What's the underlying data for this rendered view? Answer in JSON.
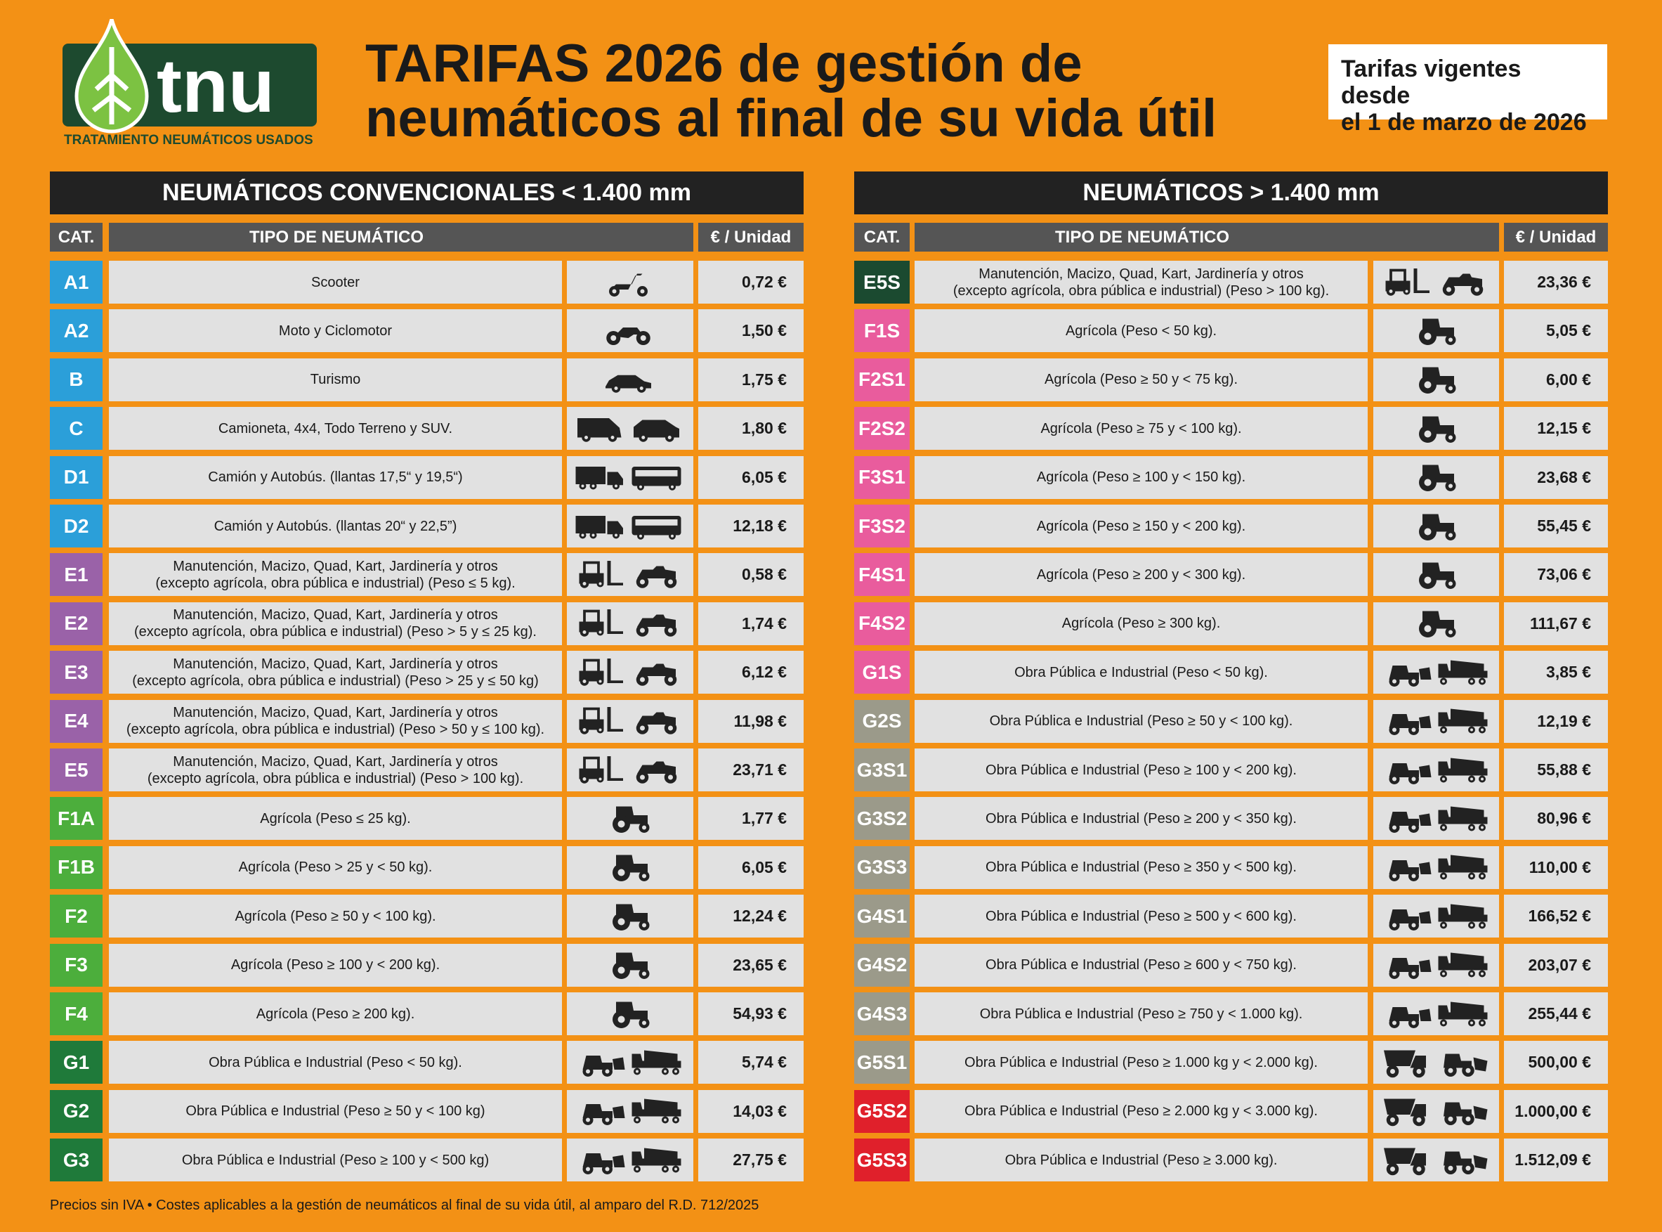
{
  "header": {
    "logo_text": "tnu",
    "logo_subtitle": "TRATAMIENTO NEUMÁTICOS USADOS",
    "title": [
      "TARIFAS 2026 de gestión de",
      "neumáticos al final de su vida útil"
    ],
    "validity": [
      "Tarifas vigentes desde",
      "el 1 de marzo de 2026"
    ]
  },
  "tables": [
    {
      "title": "NEUMÁTICOS CONVENCIONALES < 1.400 mm",
      "headers": [
        "CAT.",
        "TIPO DE NEUMÁTICO",
        "€ / Unidad"
      ],
      "rows": [
        {
          "cat": "A1",
          "color": "#2b9fd9",
          "type": [
            "Scooter"
          ],
          "price": "0,72 €"
        },
        {
          "cat": "A2",
          "color": "#2b9fd9",
          "type": [
            "Moto y Ciclomotor"
          ],
          "price": "1,50 €"
        },
        {
          "cat": "B",
          "color": "#2b9fd9",
          "type": [
            "Turismo"
          ],
          "price": "1,75 €"
        },
        {
          "cat": "C",
          "color": "#2b9fd9",
          "type": [
            "Camioneta, 4x4, Todo Terreno y SUV."
          ],
          "price": "1,80 €"
        },
        {
          "cat": "D1",
          "color": "#2b9fd9",
          "type": [
            "Camión y Autobús. (llantas 17,5“ y 19,5“)"
          ],
          "price": "6,05 €"
        },
        {
          "cat": "D2",
          "color": "#2b9fd9",
          "type": [
            "Camión y Autobús. (llantas 20“ y 22,5”)"
          ],
          "price": "12,18 €"
        },
        {
          "cat": "E1",
          "color": "#9a62a8",
          "type": [
            "Manutención, Macizo, Quad, Kart, Jardinería y otros",
            "(excepto agrícola, obra pública e industrial)  (Peso ≤ 5 kg)."
          ],
          "price": "0,58 €"
        },
        {
          "cat": "E2",
          "color": "#9a62a8",
          "type": [
            "Manutención, Macizo, Quad, Kart, Jardinería y otros",
            "(excepto agrícola, obra pública e industrial) (Peso > 5 y ≤ 25 kg)."
          ],
          "price": "1,74 €"
        },
        {
          "cat": "E3",
          "color": "#9a62a8",
          "type": [
            "Manutención, Macizo, Quad, Kart, Jardinería y otros",
            "(excepto agrícola, obra pública e industrial) (Peso > 25 y ≤ 50 kg)"
          ],
          "price": "6,12 €"
        },
        {
          "cat": "E4",
          "color": "#9a62a8",
          "type": [
            "Manutención, Macizo, Quad, Kart, Jardinería y otros",
            "(excepto agrícola, obra pública e industrial) (Peso > 50 y ≤ 100 kg)."
          ],
          "price": "11,98 €"
        },
        {
          "cat": "E5",
          "color": "#9a62a8",
          "type": [
            "Manutención, Macizo, Quad, Kart, Jardinería y otros",
            "(excepto agrícola, obra pública e industrial) (Peso > 100 kg)."
          ],
          "price": "23,71 €"
        },
        {
          "cat": "F1A",
          "color": "#4cae3c",
          "type": [
            "Agrícola (Peso ≤ 25 kg)."
          ],
          "price": "1,77 €"
        },
        {
          "cat": "F1B",
          "color": "#4cae3c",
          "type": [
            "Agrícola (Peso > 25 y < 50 kg)."
          ],
          "price": "6,05 €"
        },
        {
          "cat": "F2",
          "color": "#4cae3c",
          "type": [
            "Agrícola (Peso ≥ 50 y < 100 kg)."
          ],
          "price": "12,24 €"
        },
        {
          "cat": "F3",
          "color": "#4cae3c",
          "type": [
            "Agrícola (Peso ≥ 100 y < 200 kg)."
          ],
          "price": "23,65 €"
        },
        {
          "cat": "F4",
          "color": "#4cae3c",
          "type": [
            "Agrícola (Peso ≥ 200 kg)."
          ],
          "price": "54,93 €"
        },
        {
          "cat": "G1",
          "color": "#1f7a3a",
          "type": [
            "Obra Pública e Industrial (Peso < 50 kg)."
          ],
          "price": "5,74 €"
        },
        {
          "cat": "G2",
          "color": "#1f7a3a",
          "type": [
            "Obra Pública e Industrial (Peso ≥ 50 y < 100 kg)"
          ],
          "price": "14,03 €"
        },
        {
          "cat": "G3",
          "color": "#1f7a3a",
          "type": [
            "Obra Pública e Industrial (Peso ≥ 100 y < 500 kg)"
          ],
          "price": "27,75 €"
        }
      ]
    },
    {
      "title": "NEUMÁTICOS > 1.400 mm",
      "headers": [
        "CAT.",
        "TIPO DE NEUMÁTICO",
        "€ / Unidad"
      ],
      "rows": [
        {
          "cat": "E5S",
          "color": "#1b4a30",
          "type": [
            "Manutención, Macizo, Quad, Kart, Jardinería y otros",
            "(excepto agrícola, obra pública e industrial) (Peso > 100 kg)."
          ],
          "price": "23,36 €"
        },
        {
          "cat": "F1S",
          "color": "#e95c9d",
          "type": [
            "Agrícola (Peso < 50 kg)."
          ],
          "price": "5,05 €"
        },
        {
          "cat": "F2S1",
          "color": "#e95c9d",
          "type": [
            "Agrícola (Peso ≥ 50 y < 75 kg)."
          ],
          "price": "6,00 €"
        },
        {
          "cat": "F2S2",
          "color": "#e95c9d",
          "type": [
            "Agrícola (Peso ≥ 75 y < 100 kg)."
          ],
          "price": "12,15 €"
        },
        {
          "cat": "F3S1",
          "color": "#e95c9d",
          "type": [
            "Agrícola (Peso ≥ 100 y < 150 kg)."
          ],
          "price": "23,68 €"
        },
        {
          "cat": "F3S2",
          "color": "#e95c9d",
          "type": [
            "Agrícola (Peso ≥ 150 y < 200 kg)."
          ],
          "price": "55,45 €"
        },
        {
          "cat": "F4S1",
          "color": "#e95c9d",
          "type": [
            "Agrícola (Peso ≥ 200 y < 300 kg)."
          ],
          "price": "73,06 €"
        },
        {
          "cat": "F4S2",
          "color": "#e95c9d",
          "type": [
            "Agrícola (Peso ≥ 300 kg)."
          ],
          "price": "111,67 €"
        },
        {
          "cat": "G1S",
          "color": "#e95c9d",
          "type": [
            "Obra Pública e Industrial (Peso < 50 kg)."
          ],
          "price": "3,85 €"
        },
        {
          "cat": "G2S",
          "color": "#9b9a8a",
          "type": [
            "Obra Pública e Industrial (Peso ≥ 50 y < 100 kg)."
          ],
          "price": "12,19 €"
        },
        {
          "cat": "G3S1",
          "color": "#9b9a8a",
          "type": [
            "Obra Pública e Industrial (Peso ≥ 100 y < 200 kg)."
          ],
          "price": "55,88 €"
        },
        {
          "cat": "G3S2",
          "color": "#9b9a8a",
          "type": [
            "Obra Pública e Industrial (Peso ≥ 200 y < 350 kg)."
          ],
          "price": "80,96 €"
        },
        {
          "cat": "G3S3",
          "color": "#9b9a8a",
          "type": [
            "Obra Pública e Industrial (Peso ≥ 350 y < 500 kg)."
          ],
          "price": "110,00 €"
        },
        {
          "cat": "G4S1",
          "color": "#9b9a8a",
          "type": [
            "Obra Pública e Industrial (Peso ≥ 500 y < 600 kg)."
          ],
          "price": "166,52 €"
        },
        {
          "cat": "G4S2",
          "color": "#9b9a8a",
          "type": [
            "Obra Pública e Industrial (Peso ≥ 600 y < 750 kg)."
          ],
          "price": "203,07 €"
        },
        {
          "cat": "G4S3",
          "color": "#9b9a8a",
          "type": [
            "Obra Pública e Industrial (Peso ≥ 750 y < 1.000 kg)."
          ],
          "price": "255,44 €"
        },
        {
          "cat": "G5S1",
          "color": "#9b9a8a",
          "type": [
            "Obra Pública e Industrial (Peso ≥ 1.000 kg y < 2.000 kg)."
          ],
          "price": "500,00 €"
        },
        {
          "cat": "G5S2",
          "color": "#e0202b",
          "type": [
            "Obra Pública e Industrial (Peso ≥ 2.000 kg y < 3.000 kg)."
          ],
          "price": "1.000,00 €"
        },
        {
          "cat": "G5S3",
          "color": "#e0202b",
          "type": [
            "Obra Pública e Industrial (Peso ≥ 3.000 kg)."
          ],
          "price": "1.512,09 €"
        }
      ]
    }
  ],
  "footer": "Precios sin IVA  • Costes aplicables a la gestión de neumáticos al final de su vida útil, al amparo del R.D. 712/2025"
}
